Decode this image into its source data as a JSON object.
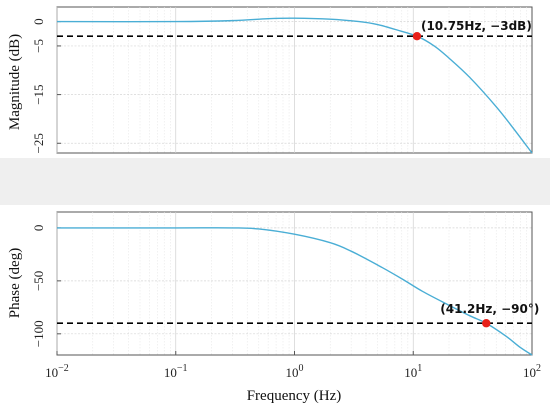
{
  "chart_data": [
    {
      "type": "line",
      "title": "",
      "xlabel": "",
      "ylabel": "Magnitude (dB)",
      "xscale": "log",
      "xlim": [
        0.01,
        100
      ],
      "ylim": [
        -27,
        3
      ],
      "yticks": [
        0,
        -5,
        -15,
        -25
      ],
      "ytick_labels": [
        "0",
        "−5",
        "−15",
        "−25"
      ],
      "grid": true,
      "series": [
        {
          "name": "",
          "color": "#4aaed5",
          "x": [
            0.01,
            0.1,
            0.3,
            0.6,
            1,
            2,
            3.5,
            5,
            7,
            10.75,
            15,
            20,
            30,
            50,
            70,
            100
          ],
          "y": [
            0,
            0,
            0.2,
            0.6,
            0.7,
            0.5,
            0.0,
            -0.6,
            -1.6,
            -3.0,
            -5.0,
            -7.5,
            -11.5,
            -17.5,
            -22.0,
            -27.0
          ]
        }
      ],
      "reference_line": {
        "y": -3,
        "style": "dashed",
        "color": "#000000"
      },
      "marker": {
        "x": 10.75,
        "y": -3,
        "color": "#e8201a",
        "label": "(10.75Hz, −3dB)"
      }
    },
    {
      "type": "line",
      "title": "",
      "xlabel": "Frequency (Hz)",
      "ylabel": "Phase (deg)",
      "xscale": "log",
      "xlim": [
        0.01,
        100
      ],
      "ylim": [
        -120,
        15
      ],
      "yticks": [
        0,
        -50,
        -100
      ],
      "ytick_labels": [
        "0",
        "−50",
        "−100"
      ],
      "xticks": [
        0.01,
        0.1,
        1,
        10,
        100
      ],
      "xtick_labels": [
        {
          "base": "10",
          "exp": "−2"
        },
        {
          "base": "10",
          "exp": "−1"
        },
        {
          "base": "10",
          "exp": "0"
        },
        {
          "base": "10",
          "exp": "1"
        },
        {
          "base": "10",
          "exp": "2"
        }
      ],
      "grid": true,
      "series": [
        {
          "name": "",
          "color": "#4aaed5",
          "x": [
            0.01,
            0.1,
            0.3,
            0.5,
            1,
            2,
            3,
            5,
            8,
            12,
            20,
            30,
            41.2,
            60,
            80,
            100
          ],
          "y": [
            0,
            0,
            0,
            -1,
            -6,
            -14,
            -22,
            -35,
            -48,
            -60,
            -73,
            -83,
            -90,
            -102,
            -113,
            -120
          ]
        }
      ],
      "reference_line": {
        "y": -90,
        "style": "dashed",
        "color": "#000000"
      },
      "marker": {
        "x": 41.2,
        "y": -90,
        "color": "#e8201a",
        "label": "(41.2Hz, −90°)"
      }
    }
  ]
}
